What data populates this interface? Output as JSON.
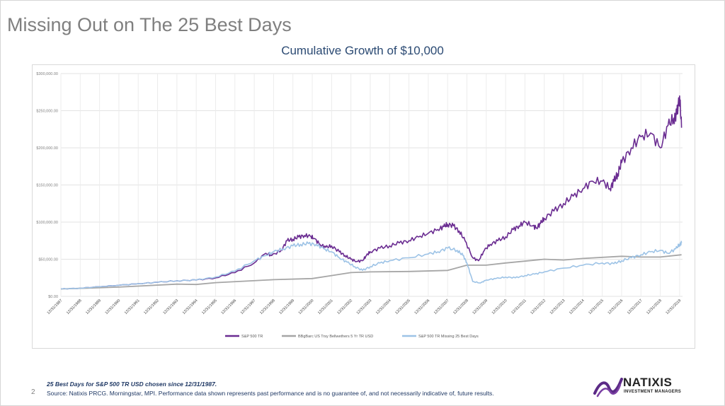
{
  "slide": {
    "title": "Missing Out on The 25 Best Days",
    "page_number": "2",
    "footnote": "25 Best Days for S&P 500 TR USD chosen since 12/31/1987.",
    "source": "Source:  Natixis PRCG.  Morningstar, MPI.  Performance data shown represents past performance and is no guarantee of, and not necessarily indicative of, future results.",
    "logo": {
      "name": "NATIXIS",
      "tagline": "INVESTMENT MANAGERS",
      "icon": "natixis-swoosh-icon",
      "color": "#5b2a86"
    }
  },
  "chart_data": {
    "type": "line",
    "title": "Cumulative Growth of $10,000",
    "xlabel": "",
    "ylabel": "",
    "ylim": [
      0,
      300000
    ],
    "y_ticks": [
      0,
      50000,
      100000,
      150000,
      200000,
      250000,
      300000
    ],
    "y_tick_labels": [
      "$0.00",
      "$50,000.00",
      "$100,000.00",
      "$150,000.00",
      "$200,000.00",
      "$250,000.00",
      "$300,000.00"
    ],
    "xlim": [
      1987.0,
      2019.15
    ],
    "x_ticks": [
      1987,
      1988,
      1989,
      1990,
      1991,
      1992,
      1993,
      1994,
      1995,
      1996,
      1997,
      1998,
      1999,
      2000,
      2001,
      2002,
      2003,
      2004,
      2005,
      2006,
      2007,
      2008,
      2009,
      2010,
      2011,
      2012,
      2013,
      2014,
      2015,
      2016,
      2017,
      2018,
      2019
    ],
    "x_tick_labels": [
      "12/31/1987",
      "12/31/1988",
      "12/31/1989",
      "12/31/1990",
      "12/31/1991",
      "12/31/1992",
      "12/31/1993",
      "12/31/1994",
      "12/31/1995",
      "12/31/1996",
      "12/31/1997",
      "12/31/1998",
      "12/31/1999",
      "12/31/2000",
      "12/31/2001",
      "12/31/2002",
      "12/31/2003",
      "12/31/2004",
      "12/31/2005",
      "12/31/2006",
      "12/31/2007",
      "12/31/2008",
      "12/31/2009",
      "12/31/2010",
      "12/31/2011",
      "12/31/2012",
      "12/31/2013",
      "12/31/2014",
      "12/31/2015",
      "12/31/2016",
      "12/31/2017",
      "12/31/2018",
      "12/31/2019"
    ],
    "grid": true,
    "legend_position": "bottom",
    "series": [
      {
        "name": "S&P 500 TR",
        "color": "#6a2c91",
        "x": [
          1987.0,
          1988.0,
          1989.0,
          1990.0,
          1991.0,
          1992.0,
          1993.0,
          1994.0,
          1995.0,
          1996.0,
          1997.0,
          1997.6,
          1997.9,
          1998.4,
          1998.7,
          1999.0,
          1999.3,
          1999.6,
          1999.9,
          2000.1,
          2000.4,
          2000.7,
          2001.0,
          2001.4,
          2001.7,
          2002.0,
          2002.3,
          2002.6,
          2002.8,
          2003.0,
          2003.5,
          2004.0,
          2004.5,
          2005.0,
          2005.5,
          2006.0,
          2006.5,
          2006.8,
          2007.0,
          2007.3,
          2007.6,
          2007.9,
          2008.3,
          2008.6,
          2008.9,
          2009.2,
          2009.6,
          2010.0,
          2010.4,
          2010.7,
          2011.0,
          2011.4,
          2011.6,
          2011.8,
          2012.0,
          2012.5,
          2013.0,
          2013.5,
          2014.0,
          2014.5,
          2015.0,
          2015.4,
          2015.6,
          2015.8,
          2016.0,
          2016.5,
          2017.0,
          2017.5,
          2018.0,
          2018.4,
          2018.7,
          2018.85,
          2019.0,
          2019.1
        ],
        "y": [
          10000,
          11000,
          13000,
          15000,
          17000,
          19000,
          21000,
          22000,
          25000,
          32000,
          45000,
          58000,
          55000,
          62000,
          75000,
          77000,
          80000,
          82000,
          81000,
          78000,
          70000,
          66000,
          68000,
          60000,
          55000,
          50000,
          47000,
          48000,
          55000,
          60000,
          65000,
          68000,
          72000,
          75000,
          80000,
          85000,
          90000,
          94000,
          97000,
          95000,
          88000,
          75000,
          52000,
          48000,
          62000,
          70000,
          75000,
          80000,
          90000,
          95000,
          100000,
          95000,
          92000,
          98000,
          105000,
          115000,
          125000,
          135000,
          145000,
          155000,
          155000,
          145000,
          155000,
          165000,
          180000,
          200000,
          215000,
          220000,
          200000,
          230000,
          240000,
          245000,
          270000,
          227000
        ]
      },
      {
        "name": "BBgBarc US Trsy Bellwethers 5 Yr TR USD",
        "color": "#a6a6a6",
        "x": [
          1987.0,
          1990.0,
          1993.0,
          1994.0,
          1995.0,
          1998.0,
          2000.0,
          2001.0,
          2002.0,
          2003.0,
          2005.0,
          2007.0,
          2008.0,
          2009.0,
          2010.0,
          2012.0,
          2013.0,
          2014.0,
          2016.0,
          2017.0,
          2018.0,
          2019.1
        ],
        "y": [
          10000,
          12500,
          16500,
          16000,
          18500,
          22500,
          24000,
          28000,
          32000,
          33000,
          33500,
          35000,
          42000,
          42000,
          45000,
          50000,
          49000,
          51000,
          54000,
          53000,
          53000,
          56000
        ]
      },
      {
        "name": "S&P 500 TR Missing 25 Best Days",
        "color": "#9dc3e6",
        "x": [
          1987.0,
          1988.0,
          1989.0,
          1990.0,
          1991.0,
          1992.0,
          1993.0,
          1994.0,
          1995.0,
          1996.0,
          1997.0,
          1997.6,
          1998.0,
          1998.5,
          1999.0,
          1999.4,
          1999.8,
          2000.2,
          2000.6,
          2001.0,
          2001.4,
          2001.8,
          2002.2,
          2002.6,
          2003.0,
          2003.5,
          2004.0,
          2005.0,
          2006.0,
          2006.5,
          2007.0,
          2007.5,
          2007.8,
          2008.0,
          2008.3,
          2008.7,
          2009.0,
          2009.5,
          2010.0,
          2010.5,
          2011.0,
          2011.5,
          2012.0,
          2013.0,
          2014.0,
          2015.0,
          2015.6,
          2016.0,
          2016.5,
          2017.0,
          2017.5,
          2018.0,
          2018.4,
          2018.8,
          2019.0,
          2019.1
        ],
        "y": [
          10000,
          11000,
          13000,
          15000,
          17000,
          19000,
          21000,
          22000,
          26000,
          34000,
          48000,
          55000,
          60000,
          64000,
          68000,
          70000,
          71000,
          70000,
          64000,
          60000,
          52000,
          46000,
          40000,
          35000,
          40000,
          45000,
          48000,
          52000,
          57000,
          60000,
          65000,
          62000,
          55000,
          45000,
          20000,
          18000,
          22000,
          24000,
          26000,
          25000,
          28000,
          30000,
          33000,
          38000,
          42000,
          45000,
          44000,
          48000,
          52000,
          56000,
          60000,
          62000,
          58000,
          64000,
          70000,
          72000
        ]
      }
    ]
  }
}
